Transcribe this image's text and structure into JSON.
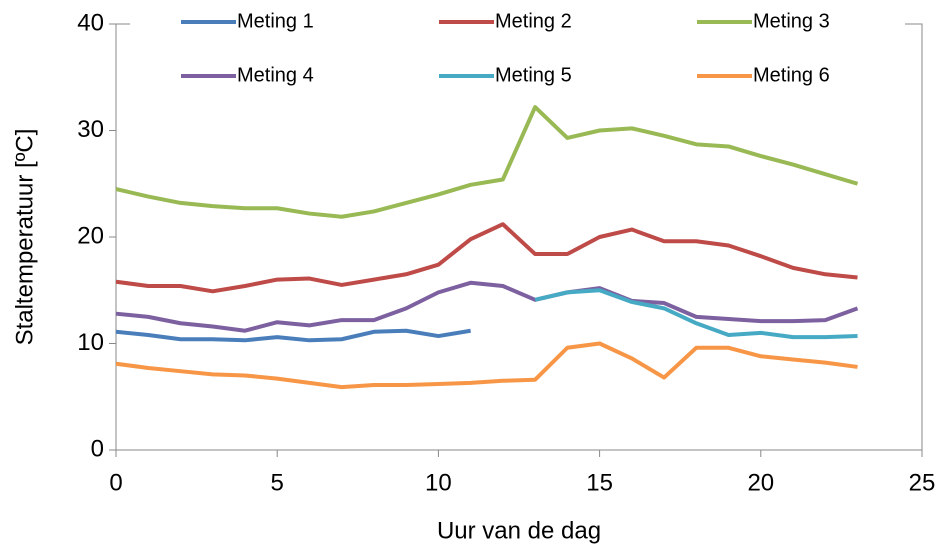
{
  "chart_data": {
    "type": "line",
    "xlabel": "Uur van de dag",
    "ylabel": "Staltemperatuur [ºC]",
    "x": [
      0,
      1,
      2,
      3,
      4,
      5,
      6,
      7,
      8,
      9,
      10,
      11,
      12,
      13,
      14,
      15,
      16,
      17,
      18,
      19,
      20,
      21,
      22,
      23
    ],
    "xlim": [
      0,
      25
    ],
    "xticks": [
      0,
      5,
      10,
      15,
      20,
      25
    ],
    "ylim": [
      0,
      40
    ],
    "yticks": [
      0,
      10,
      20,
      30,
      40
    ],
    "series": [
      {
        "name": "Meting 1",
        "color": "#4a7ebb",
        "values": [
          11.1,
          10.8,
          10.4,
          10.4,
          10.3,
          10.6,
          10.3,
          10.4,
          11.1,
          11.2,
          10.7,
          11.2,
          null,
          null,
          null,
          null,
          null,
          null,
          null,
          null,
          null,
          null,
          null,
          null
        ]
      },
      {
        "name": "Meting 2",
        "color": "#be4b48",
        "values": [
          15.8,
          15.4,
          15.4,
          14.9,
          15.4,
          16.0,
          16.1,
          15.5,
          16.0,
          16.5,
          17.4,
          19.8,
          21.2,
          18.4,
          18.4,
          20.0,
          20.7,
          19.6,
          19.6,
          19.2,
          18.2,
          17.1,
          16.5,
          16.2
        ]
      },
      {
        "name": "Meting 3",
        "color": "#98b954",
        "values": [
          24.5,
          23.8,
          23.2,
          22.9,
          22.7,
          22.7,
          22.2,
          21.9,
          22.4,
          23.2,
          24.0,
          24.9,
          25.4,
          32.2,
          29.3,
          30.0,
          30.2,
          29.5,
          28.7,
          28.5,
          27.6,
          26.8,
          25.9,
          25.0
        ]
      },
      {
        "name": "Meting 4",
        "color": "#7d60a0",
        "values": [
          12.8,
          12.5,
          11.9,
          11.6,
          11.2,
          12.0,
          11.7,
          12.2,
          12.2,
          13.3,
          14.8,
          15.7,
          15.4,
          14.1,
          14.8,
          15.2,
          14.0,
          13.8,
          12.5,
          12.3,
          12.1,
          12.1,
          12.2,
          13.3
        ]
      },
      {
        "name": "Meting 5",
        "color": "#46aac5",
        "values": [
          null,
          null,
          null,
          null,
          null,
          null,
          null,
          null,
          null,
          null,
          null,
          null,
          null,
          14.1,
          14.8,
          15.0,
          13.9,
          13.3,
          11.9,
          10.8,
          11.0,
          10.6,
          10.6,
          10.7
        ]
      },
      {
        "name": "Meting 6",
        "color": "#f79646",
        "values": [
          8.1,
          7.7,
          7.4,
          7.1,
          7.0,
          6.7,
          6.3,
          5.9,
          6.1,
          6.1,
          6.2,
          6.3,
          6.5,
          6.6,
          9.6,
          10.0,
          8.6,
          6.8,
          9.6,
          9.6,
          8.8,
          8.5,
          8.2,
          7.8
        ]
      }
    ]
  }
}
